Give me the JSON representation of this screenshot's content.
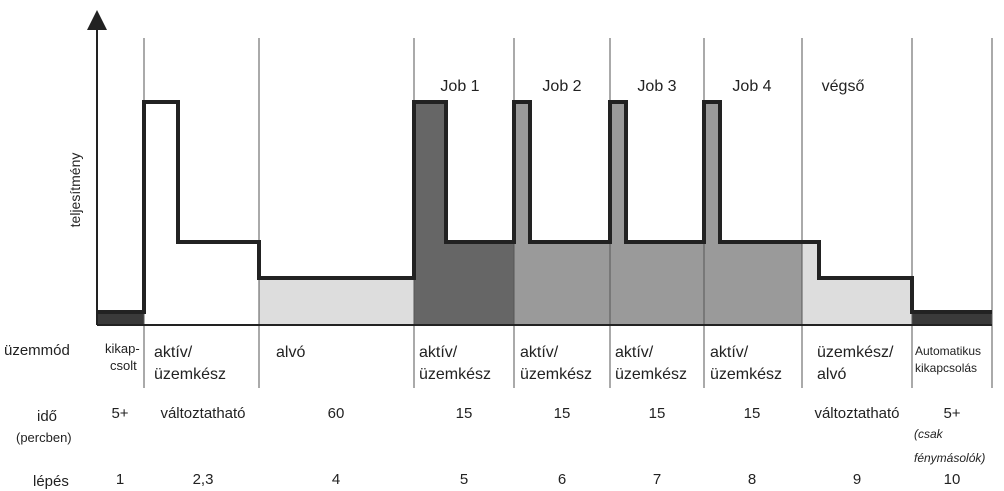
{
  "colors": {
    "dark_fill": "#666666",
    "mid_fill": "#9a9a9a",
    "light_fill": "#dddddd",
    "black_fill": "#3a3a3a",
    "power_line": "#222222",
    "divider": "#555555"
  },
  "axis": {
    "ylabel": "teljesítmény"
  },
  "row_labels": {
    "mode": "üzemmód",
    "time": "idő",
    "time_unit": "(percben)",
    "step": "lépés"
  },
  "phase_titles": [
    "Job 1",
    "Job 2",
    "Job 3",
    "Job 4",
    "végső"
  ],
  "columns": [
    {
      "mode": [
        "kikap-",
        "csolt"
      ],
      "time": "5+",
      "step": "1"
    },
    {
      "mode": [
        "aktív/",
        "üzemkész"
      ],
      "time": "változtatható",
      "step": "2,3"
    },
    {
      "mode": [
        "alvó"
      ],
      "time": "60",
      "step": "4"
    },
    {
      "mode": [
        "aktív/",
        "üzemkész"
      ],
      "time": "15",
      "step": "5"
    },
    {
      "mode": [
        "aktív/",
        "üzemkész"
      ],
      "time": "15",
      "step": "6"
    },
    {
      "mode": [
        "aktív/",
        "üzemkész"
      ],
      "time": "15",
      "step": "7"
    },
    {
      "mode": [
        "aktív/",
        "üzemkész"
      ],
      "time": "15",
      "step": "8"
    },
    {
      "mode": [
        "üzemkész/",
        "alvó"
      ],
      "time": "változtatható",
      "step": "9"
    },
    {
      "mode": [
        "Automatikus",
        "kikapcsolás"
      ],
      "time": "5+",
      "time_note": [
        "(csak",
        "fénymásolók)"
      ],
      "step": "10"
    }
  ]
}
